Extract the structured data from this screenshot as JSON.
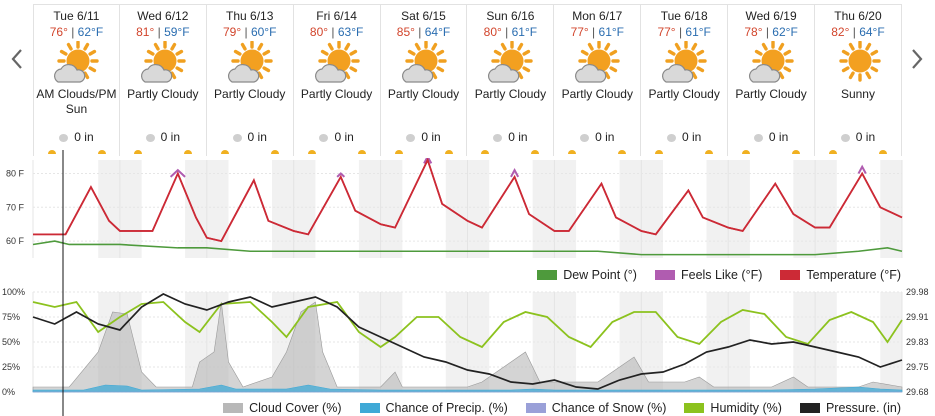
{
  "days": [
    {
      "name": "Tue 6/11",
      "hi": "76°",
      "lo": "62°F",
      "cond": "AM Clouds/PM Sun",
      "precip": "0 in"
    },
    {
      "name": "Wed 6/12",
      "hi": "81°",
      "lo": "59°F",
      "cond": "Partly Cloudy",
      "precip": "0 in"
    },
    {
      "name": "Thu 6/13",
      "hi": "79°",
      "lo": "60°F",
      "cond": "Partly Cloudy",
      "precip": "0 in"
    },
    {
      "name": "Fri 6/14",
      "hi": "80°",
      "lo": "63°F",
      "cond": "Partly Cloudy",
      "precip": "0 in"
    },
    {
      "name": "Sat 6/15",
      "hi": "85°",
      "lo": "64°F",
      "cond": "Partly Cloudy",
      "precip": "0 in"
    },
    {
      "name": "Sun 6/16",
      "hi": "80°",
      "lo": "61°F",
      "cond": "Partly Cloudy",
      "precip": "0 in"
    },
    {
      "name": "Mon 6/17",
      "hi": "77°",
      "lo": "61°F",
      "cond": "Partly Cloudy",
      "precip": "0 in"
    },
    {
      "name": "Tue 6/18",
      "hi": "77°",
      "lo": "61°F",
      "cond": "Partly Cloudy",
      "precip": "0 in"
    },
    {
      "name": "Wed 6/19",
      "hi": "78°",
      "lo": "62°F",
      "cond": "Partly Cloudy",
      "precip": "0 in"
    },
    {
      "name": "Thu 6/20",
      "hi": "82°",
      "lo": "64°F",
      "cond": "Sunny",
      "precip": "0 in"
    }
  ],
  "icons": [
    "partly-cloudy-icon",
    "partly-cloudy-icon",
    "partly-cloudy-icon",
    "partly-cloudy-icon",
    "partly-cloudy-icon",
    "partly-cloudy-icon",
    "partly-cloudy-icon",
    "partly-cloudy-icon",
    "partly-cloudy-icon",
    "sunny-icon"
  ],
  "colors": {
    "temperature": "#cc2a36",
    "feels_like": "#b05cb0",
    "dew_point": "#4e9a3c",
    "cloud_cover": "#b8b8b8",
    "precip": "#3fa9d6",
    "snow": "#9aa0d8",
    "humidity": "#8cc21e",
    "pressure": "#222222",
    "hi_text": "#d2452c",
    "lo_text": "#2a6db0",
    "sun": "#f0a020"
  },
  "chart_data": [
    {
      "type": "line",
      "x_unit": "hours since start of Tue 6/11",
      "yticks": [
        "80 F",
        "70 F",
        "60 F"
      ],
      "ylim": [
        55,
        84
      ],
      "series": [
        {
          "name": "Temperature (°F)",
          "color": "#cc2a36",
          "points": [
            [
              0,
              62
            ],
            [
              9,
              62
            ],
            [
              16,
              76
            ],
            [
              21,
              66
            ],
            [
              24,
              63
            ],
            [
              33,
              63
            ],
            [
              40,
              80
            ],
            [
              45,
              67
            ],
            [
              48,
              61
            ],
            [
              52,
              60
            ],
            [
              61,
              78
            ],
            [
              65,
              66
            ],
            [
              72,
              63
            ],
            [
              76,
              62
            ],
            [
              85,
              79
            ],
            [
              89,
              69
            ],
            [
              96,
              65
            ],
            [
              100,
              64
            ],
            [
              109,
              84
            ],
            [
              113,
              71
            ],
            [
              120,
              66
            ],
            [
              124,
              64
            ],
            [
              133,
              79
            ],
            [
              137,
              68
            ],
            [
              144,
              63
            ],
            [
              148,
              63
            ],
            [
              157,
              77
            ],
            [
              161,
              67
            ],
            [
              168,
              63
            ],
            [
              172,
              62
            ],
            [
              181,
              75
            ],
            [
              185,
              67
            ],
            [
              192,
              64
            ],
            [
              196,
              63
            ],
            [
              205,
              77
            ],
            [
              210,
              68
            ],
            [
              216,
              64
            ],
            [
              220,
              64
            ],
            [
              229,
              80
            ],
            [
              234,
              70
            ],
            [
              240,
              67
            ]
          ]
        },
        {
          "name": "Feels Like (°F)",
          "color": "#b05cb0",
          "points": [
            [
              38,
              79
            ],
            [
              40,
              81
            ],
            [
              42,
              79
            ],
            [
              84,
              79
            ],
            [
              85,
              80
            ],
            [
              86,
              79
            ],
            [
              108,
              83
            ],
            [
              109,
              85
            ],
            [
              110,
              83
            ],
            [
              132,
              79
            ],
            [
              133,
              81
            ],
            [
              134,
              79
            ],
            [
              228,
              80
            ],
            [
              229,
              82
            ],
            [
              230,
              80
            ]
          ]
        },
        {
          "name": "Dew Point (°)",
          "color": "#4e9a3c",
          "points": [
            [
              0,
              59
            ],
            [
              6,
              60
            ],
            [
              10,
              59
            ],
            [
              24,
              59
            ],
            [
              40,
              58
            ],
            [
              48,
              58
            ],
            [
              60,
              57
            ],
            [
              72,
              57
            ],
            [
              84,
              57
            ],
            [
              96,
              57
            ],
            [
              108,
              57
            ],
            [
              120,
              57
            ],
            [
              132,
              57
            ],
            [
              144,
              57
            ],
            [
              156,
              57
            ],
            [
              168,
              56
            ],
            [
              180,
              56
            ],
            [
              192,
              56
            ],
            [
              204,
              56
            ],
            [
              216,
              56
            ],
            [
              228,
              57
            ],
            [
              236,
              58
            ],
            [
              240,
              57
            ]
          ]
        }
      ]
    },
    {
      "type": "line",
      "x_unit": "hours since start of Tue 6/11",
      "yticks_left": [
        "100%",
        "75%",
        "50%",
        "25%",
        "0%"
      ],
      "yticks_right": [
        "29.98",
        "29.91",
        "29.83",
        "29.75",
        "29.68"
      ],
      "ylim": [
        0,
        100
      ],
      "series": [
        {
          "name": "Cloud Cover (%)",
          "color": "#b8b8b8",
          "points": [
            [
              0,
              5
            ],
            [
              10,
              5
            ],
            [
              18,
              40
            ],
            [
              22,
              80
            ],
            [
              26,
              78
            ],
            [
              30,
              20
            ],
            [
              34,
              5
            ],
            [
              44,
              5
            ],
            [
              46,
              30
            ],
            [
              50,
              40
            ],
            [
              52,
              90
            ],
            [
              54,
              30
            ],
            [
              58,
              5
            ],
            [
              66,
              15
            ],
            [
              70,
              40
            ],
            [
              74,
              80
            ],
            [
              78,
              90
            ],
            [
              80,
              40
            ],
            [
              84,
              5
            ],
            [
              96,
              5
            ],
            [
              100,
              20
            ],
            [
              102,
              5
            ],
            [
              120,
              5
            ],
            [
              124,
              10
            ],
            [
              132,
              30
            ],
            [
              136,
              40
            ],
            [
              140,
              10
            ],
            [
              156,
              10
            ],
            [
              162,
              25
            ],
            [
              166,
              35
            ],
            [
              170,
              10
            ],
            [
              180,
              10
            ],
            [
              184,
              15
            ],
            [
              188,
              5
            ],
            [
              204,
              5
            ],
            [
              210,
              15
            ],
            [
              214,
              5
            ],
            [
              228,
              5
            ],
            [
              232,
              10
            ],
            [
              240,
              5
            ]
          ]
        },
        {
          "name": "Chance of Precip. (%)",
          "color": "#3fa9d6",
          "points": [
            [
              0,
              2
            ],
            [
              14,
              2
            ],
            [
              20,
              7
            ],
            [
              26,
              6
            ],
            [
              30,
              2
            ],
            [
              46,
              3
            ],
            [
              52,
              7
            ],
            [
              56,
              3
            ],
            [
              70,
              3
            ],
            [
              76,
              7
            ],
            [
              82,
              3
            ],
            [
              96,
              2
            ],
            [
              132,
              2
            ],
            [
              138,
              3
            ],
            [
              144,
              2
            ],
            [
              168,
              2
            ],
            [
              180,
              2
            ],
            [
              204,
              2
            ],
            [
              216,
              3
            ],
            [
              228,
              5
            ],
            [
              234,
              3
            ],
            [
              240,
              2
            ]
          ]
        },
        {
          "name": "Chance of Snow (%)",
          "color": "#9aa0d8",
          "points": [
            [
              0,
              0
            ],
            [
              240,
              0
            ]
          ]
        },
        {
          "name": "Humidity (%)",
          "color": "#8cc21e",
          "points": [
            [
              0,
              90
            ],
            [
              6,
              85
            ],
            [
              12,
              90
            ],
            [
              18,
              60
            ],
            [
              24,
              75
            ],
            [
              30,
              88
            ],
            [
              36,
              90
            ],
            [
              42,
              70
            ],
            [
              46,
              60
            ],
            [
              52,
              88
            ],
            [
              60,
              90
            ],
            [
              66,
              70
            ],
            [
              70,
              55
            ],
            [
              76,
              85
            ],
            [
              84,
              90
            ],
            [
              90,
              60
            ],
            [
              96,
              45
            ],
            [
              100,
              55
            ],
            [
              106,
              75
            ],
            [
              112,
              75
            ],
            [
              118,
              55
            ],
            [
              124,
              45
            ],
            [
              130,
              70
            ],
            [
              136,
              80
            ],
            [
              142,
              75
            ],
            [
              148,
              55
            ],
            [
              154,
              45
            ],
            [
              160,
              70
            ],
            [
              166,
              80
            ],
            [
              172,
              80
            ],
            [
              178,
              55
            ],
            [
              184,
              48
            ],
            [
              190,
              70
            ],
            [
              196,
              82
            ],
            [
              202,
              78
            ],
            [
              208,
              55
            ],
            [
              214,
              48
            ],
            [
              220,
              72
            ],
            [
              226,
              80
            ],
            [
              232,
              70
            ],
            [
              236,
              50
            ],
            [
              240,
              72
            ]
          ]
        },
        {
          "name": "Pressure. (in)",
          "color": "#222222",
          "points": [
            [
              0,
              75
            ],
            [
              6,
              68
            ],
            [
              12,
              80
            ],
            [
              18,
              68
            ],
            [
              24,
              62
            ],
            [
              30,
              85
            ],
            [
              36,
              98
            ],
            [
              42,
              88
            ],
            [
              48,
              82
            ],
            [
              54,
              90
            ],
            [
              60,
              95
            ],
            [
              66,
              85
            ],
            [
              72,
              90
            ],
            [
              78,
              95
            ],
            [
              84,
              85
            ],
            [
              90,
              65
            ],
            [
              96,
              55
            ],
            [
              102,
              45
            ],
            [
              108,
              35
            ],
            [
              114,
              30
            ],
            [
              120,
              22
            ],
            [
              126,
              18
            ],
            [
              132,
              10
            ],
            [
              138,
              8
            ],
            [
              144,
              12
            ],
            [
              150,
              5
            ],
            [
              156,
              3
            ],
            [
              162,
              12
            ],
            [
              168,
              18
            ],
            [
              174,
              20
            ],
            [
              180,
              28
            ],
            [
              186,
              40
            ],
            [
              192,
              45
            ],
            [
              198,
              52
            ],
            [
              204,
              48
            ],
            [
              210,
              50
            ],
            [
              216,
              45
            ],
            [
              222,
              40
            ],
            [
              228,
              35
            ],
            [
              234,
              25
            ],
            [
              240,
              32
            ]
          ]
        }
      ]
    }
  ],
  "legend1": [
    "Dew Point (°)",
    "Feels Like (°F)",
    "Temperature (°F)"
  ],
  "legend2": [
    "Cloud Cover (%)",
    "Chance of Precip. (%)",
    "Chance of Snow (%)",
    "Humidity (%)",
    "Pressure. (in)"
  ]
}
